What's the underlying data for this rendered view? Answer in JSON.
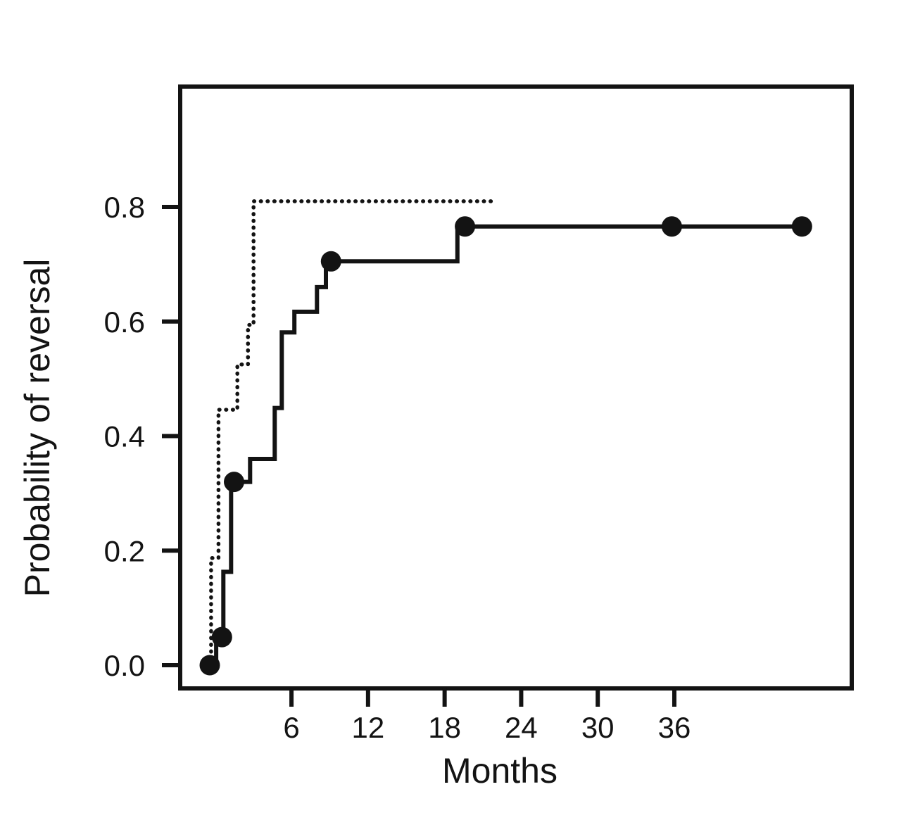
{
  "figure": {
    "background_color": "#ffffff",
    "ink_color": "#131313"
  },
  "chart_data": {
    "type": "line",
    "subtype": "kaplan-meier-step",
    "title": "",
    "xlabel": "Months",
    "ylabel": "Probability of reversal",
    "grid": false,
    "legend_position": "none",
    "xlim": [
      -2.7,
      49.9
    ],
    "ylim": [
      -0.04,
      1.01
    ],
    "x_ticks": [
      {
        "value": 6,
        "label": "6"
      },
      {
        "value": 12,
        "label": "12"
      },
      {
        "value": 18,
        "label": "18"
      },
      {
        "value": 24,
        "label": "24"
      },
      {
        "value": 30,
        "label": "30"
      },
      {
        "value": 36,
        "label": "36"
      }
    ],
    "y_ticks": [
      {
        "value": 0.0,
        "label": "0.0"
      },
      {
        "value": 0.2,
        "label": "0.2"
      },
      {
        "value": 0.4,
        "label": "0.4"
      },
      {
        "value": 0.6,
        "label": "0.6"
      },
      {
        "value": 0.8,
        "label": "0.8"
      }
    ],
    "series": [
      {
        "name": "dotted-curve",
        "line_style": "dotted",
        "marker": "none",
        "steps": [
          [
            -0.3,
            0.0
          ],
          [
            -0.3,
            0.187
          ],
          [
            0.28,
            0.187
          ],
          [
            0.28,
            0.446
          ],
          [
            1.76,
            0.446
          ],
          [
            1.76,
            0.525
          ],
          [
            2.59,
            0.525
          ],
          [
            2.59,
            0.594
          ],
          [
            3.03,
            0.594
          ],
          [
            3.03,
            0.81
          ],
          [
            22.0,
            0.81
          ]
        ],
        "censor_markers": []
      },
      {
        "name": "solid-curve-with-censor-marks",
        "line_style": "solid",
        "marker": "filled-circle",
        "steps": [
          [
            -0.4,
            0.0
          ],
          [
            0.1,
            0.0
          ],
          [
            0.1,
            0.049
          ],
          [
            0.66,
            0.049
          ],
          [
            0.66,
            0.163
          ],
          [
            1.27,
            0.163
          ],
          [
            1.27,
            0.32
          ],
          [
            2.76,
            0.32
          ],
          [
            2.76,
            0.36
          ],
          [
            4.69,
            0.36
          ],
          [
            4.69,
            0.449
          ],
          [
            5.24,
            0.449
          ],
          [
            5.24,
            0.581
          ],
          [
            6.23,
            0.581
          ],
          [
            6.23,
            0.617
          ],
          [
            8.0,
            0.617
          ],
          [
            8.0,
            0.66
          ],
          [
            8.7,
            0.66
          ],
          [
            8.7,
            0.705
          ],
          [
            19.0,
            0.705
          ],
          [
            19.0,
            0.766
          ],
          [
            46.0,
            0.766
          ]
        ],
        "censor_markers": [
          [
            -0.4,
            0.0
          ],
          [
            0.55,
            0.049
          ],
          [
            1.5,
            0.32
          ],
          [
            9.1,
            0.705
          ],
          [
            19.6,
            0.766
          ],
          [
            35.8,
            0.766
          ],
          [
            46.0,
            0.766
          ]
        ]
      }
    ]
  }
}
